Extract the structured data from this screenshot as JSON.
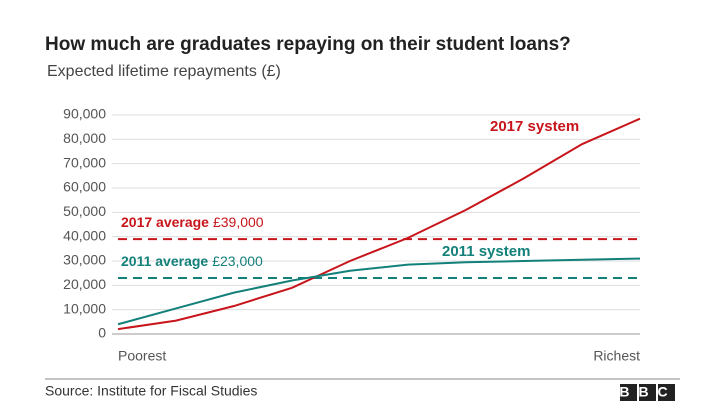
{
  "chart_data": {
    "type": "line",
    "title": "How much are graduates repaying on their student loans?",
    "subtitle": "Expected lifetime repayments (£)",
    "categories": [
      "Poorest",
      null,
      null,
      null,
      null,
      null,
      null,
      null,
      null,
      "Richest"
    ],
    "series": [
      {
        "name": "2017 system",
        "color": "#c8151b",
        "values": [
          2000,
          5500,
          11500,
          19000,
          30000,
          39500,
          51000,
          64000,
          78000,
          88500
        ]
      },
      {
        "name": "2011 system",
        "color": "#13807a",
        "values": [
          4000,
          10500,
          17000,
          22000,
          26000,
          28500,
          29500,
          30000,
          30500,
          31000
        ]
      }
    ],
    "reference_lines": [
      {
        "label": "2017 average",
        "value_label": "£39,000",
        "value": 39000,
        "color": "#c8151b"
      },
      {
        "label": "2011 average",
        "value_label": "£23,000",
        "value": 23000,
        "color": "#13807a"
      }
    ],
    "ylim": [
      0,
      90000
    ],
    "yticks": [
      0,
      {
        "value": 10000,
        "label": "10,000"
      },
      {
        "value": 20000,
        "label": "20,000"
      },
      {
        "value": 30000,
        "label": "30,000"
      },
      {
        "value": 40000,
        "label": "40,000"
      },
      {
        "value": 50000,
        "label": "50,000"
      },
      {
        "value": 60000,
        "label": "60,000"
      },
      {
        "value": 70000,
        "label": "70,000"
      },
      {
        "value": 80000,
        "label": "80,000"
      },
      {
        "value": 90000,
        "label": "90,000"
      }
    ],
    "grid": true,
    "source": "Source: Institute for Fiscal Studies",
    "logo": "BBC"
  }
}
